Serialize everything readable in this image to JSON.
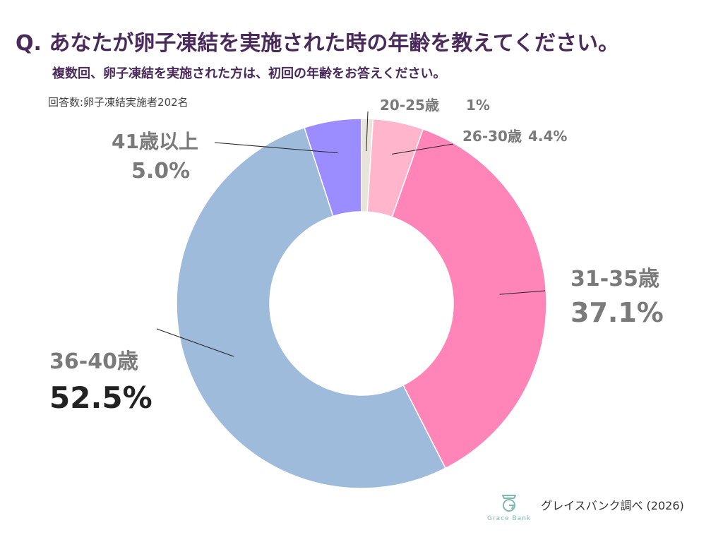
{
  "header": {
    "title": "Q. あなたが卵子凍結を実施された時の年齢を教えてください。",
    "subtitle": "複数回、卵子凍結を実施された方は、初回の年齢をお答えください。",
    "respondents": "回答数:卵子凍結実施者202名"
  },
  "chart_data": {
    "type": "pie",
    "donut": true,
    "start_angle_deg": 0,
    "direction": "clockwise",
    "slices": [
      {
        "label": "20-25歳",
        "value": 1.0,
        "value_label": "1%",
        "color": "#e8e4dc"
      },
      {
        "label": "26-30歳",
        "value": 4.4,
        "value_label": "4.4%",
        "color": "#ffb6cc"
      },
      {
        "label": "31-35歳",
        "value": 37.1,
        "value_label": "37.1%",
        "color": "#ff85b8"
      },
      {
        "label": "36-40歳",
        "value": 52.5,
        "value_label": "52.5%",
        "color": "#9fbbdc"
      },
      {
        "label": "41歳以上",
        "value": 5.0,
        "value_label": "5.0%",
        "color": "#9b8cff"
      }
    ]
  },
  "footer": {
    "logo_text": "Grace Bank",
    "logo_icon": "grace-bank-logo-icon",
    "source": "グレイスバンク調べ (2026)",
    "accent": "#7fb9b0"
  }
}
